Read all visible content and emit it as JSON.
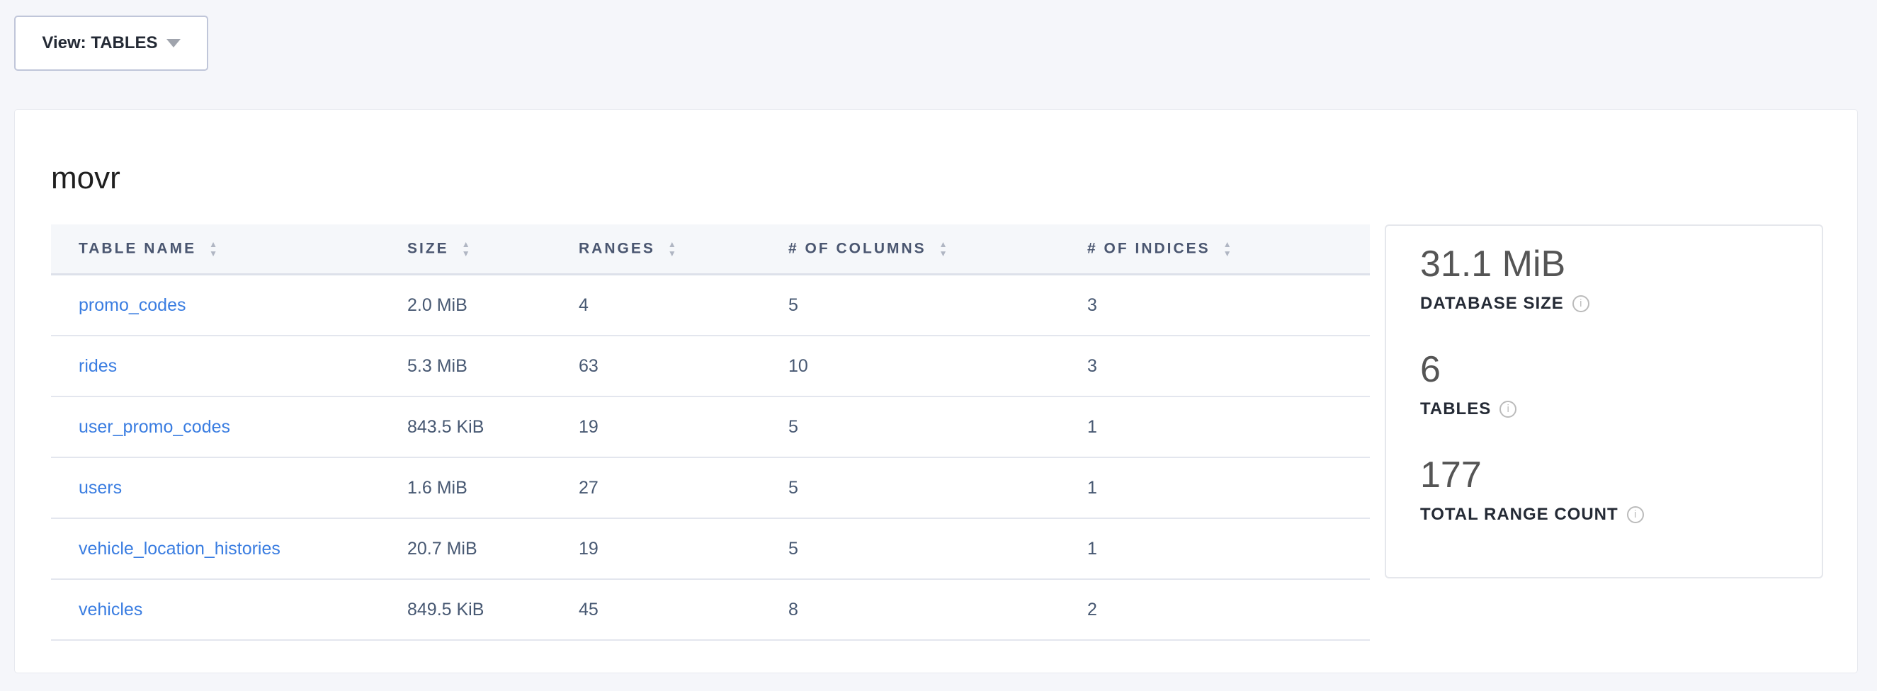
{
  "view_selector": {
    "label": "View: TABLES",
    "icon": "caret-down-icon"
  },
  "database": {
    "name": "movr"
  },
  "table": {
    "columns": [
      "TABLE NAME",
      "SIZE",
      "RANGES",
      "# OF COLUMNS",
      "# OF INDICES"
    ],
    "rows": [
      [
        "promo_codes",
        "2.0 MiB",
        "4",
        "5",
        "3"
      ],
      [
        "rides",
        "5.3 MiB",
        "63",
        "10",
        "3"
      ],
      [
        "user_promo_codes",
        "843.5 KiB",
        "19",
        "5",
        "1"
      ],
      [
        "users",
        "1.6 MiB",
        "27",
        "5",
        "1"
      ],
      [
        "vehicle_location_histories",
        "20.7 MiB",
        "19",
        "5",
        "1"
      ],
      [
        "vehicles",
        "849.5 KiB",
        "45",
        "8",
        "2"
      ]
    ]
  },
  "summary": [
    {
      "value": "31.1 MiB",
      "label": "DATABASE SIZE"
    },
    {
      "value": "6",
      "label": "TABLES"
    },
    {
      "value": "177",
      "label": "TOTAL RANGE COUNT"
    }
  ],
  "colors": {
    "link": "#3a7de1",
    "text": "#475872",
    "background": "#f5f6fa"
  }
}
